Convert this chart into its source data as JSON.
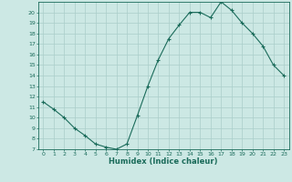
{
  "x": [
    0,
    1,
    2,
    3,
    4,
    5,
    6,
    7,
    8,
    9,
    10,
    11,
    12,
    13,
    14,
    15,
    16,
    17,
    18,
    19,
    20,
    21,
    22,
    23
  ],
  "y": [
    11.5,
    10.8,
    10.0,
    9.0,
    8.3,
    7.5,
    7.2,
    7.0,
    7.5,
    10.2,
    13.0,
    15.5,
    17.5,
    18.8,
    20.0,
    20.0,
    19.5,
    21.0,
    20.2,
    19.0,
    18.0,
    16.8,
    15.0,
    14.0
  ],
  "xlabel": "Humidex (Indice chaleur)",
  "ylim": [
    7,
    21
  ],
  "xlim": [
    -0.5,
    23.5
  ],
  "yticks": [
    7,
    8,
    9,
    10,
    11,
    12,
    13,
    14,
    15,
    16,
    17,
    18,
    19,
    20
  ],
  "xticks": [
    0,
    1,
    2,
    3,
    4,
    5,
    6,
    7,
    8,
    9,
    10,
    11,
    12,
    13,
    14,
    15,
    16,
    17,
    18,
    19,
    20,
    21,
    22,
    23
  ],
  "line_color": "#1a6b5a",
  "marker": "+",
  "bg_color": "#cce8e4",
  "grid_color": "#aaceca"
}
